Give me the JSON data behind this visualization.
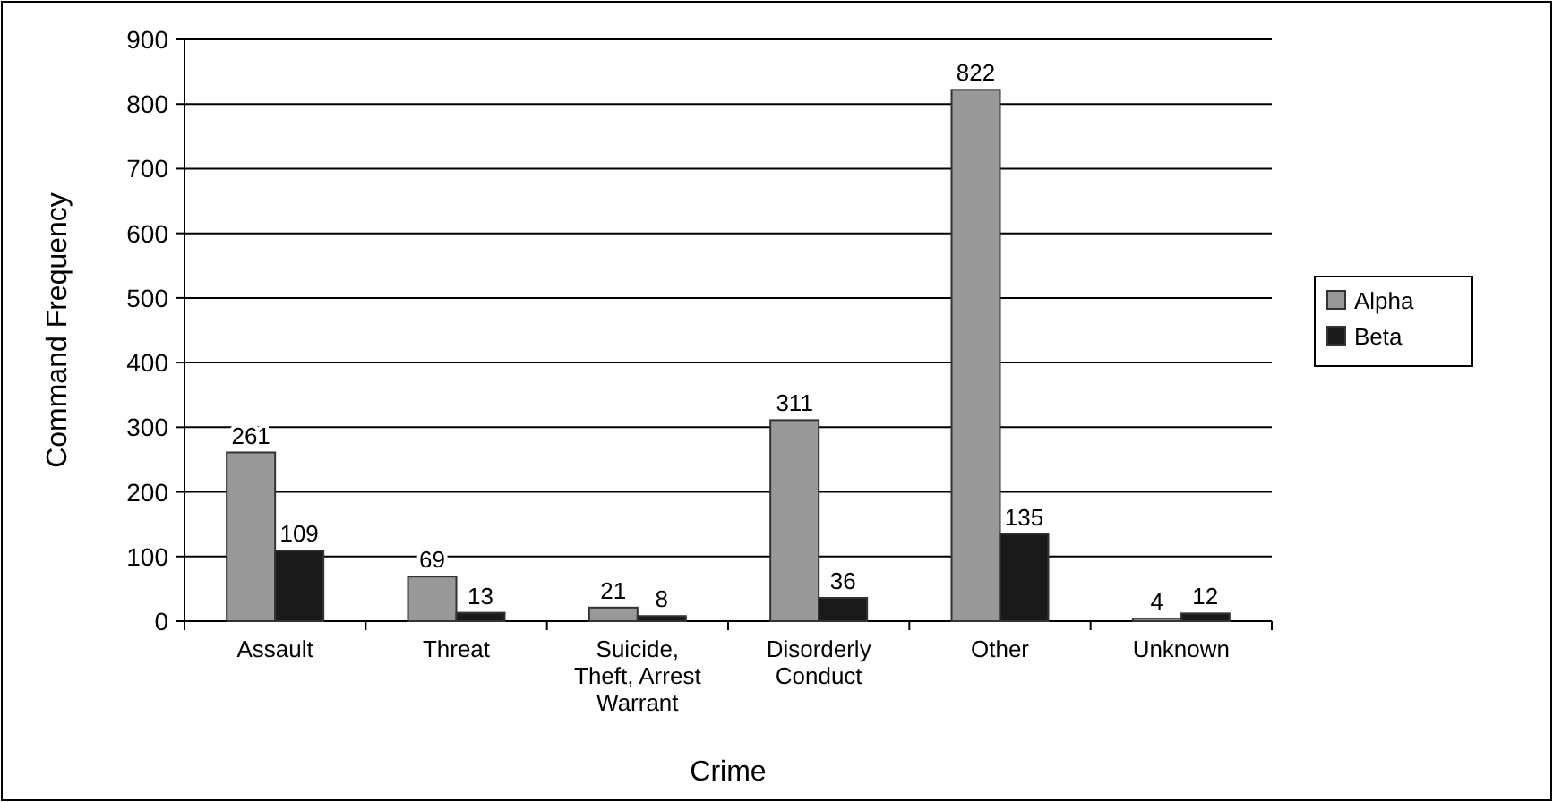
{
  "chart_data": {
    "type": "bar",
    "xlabel": "Crime",
    "ylabel": "Command Frequency",
    "categories": [
      "Assault",
      "Threat",
      "Suicide, Theft, Arrest Warrant",
      "Disorderly Conduct",
      "Other",
      "Unknown"
    ],
    "series": [
      {
        "name": "Alpha",
        "color": "#999999",
        "values": [
          261,
          69,
          21,
          311,
          822,
          4
        ]
      },
      {
        "name": "Beta",
        "color": "#1a1a1a",
        "values": [
          109,
          13,
          8,
          36,
          135,
          12
        ]
      }
    ],
    "ylim": [
      0,
      900
    ],
    "yticks": [
      0,
      100,
      200,
      300,
      400,
      500,
      600,
      700,
      800,
      900
    ],
    "grid": "y",
    "legend": "right",
    "data_labels": true
  }
}
